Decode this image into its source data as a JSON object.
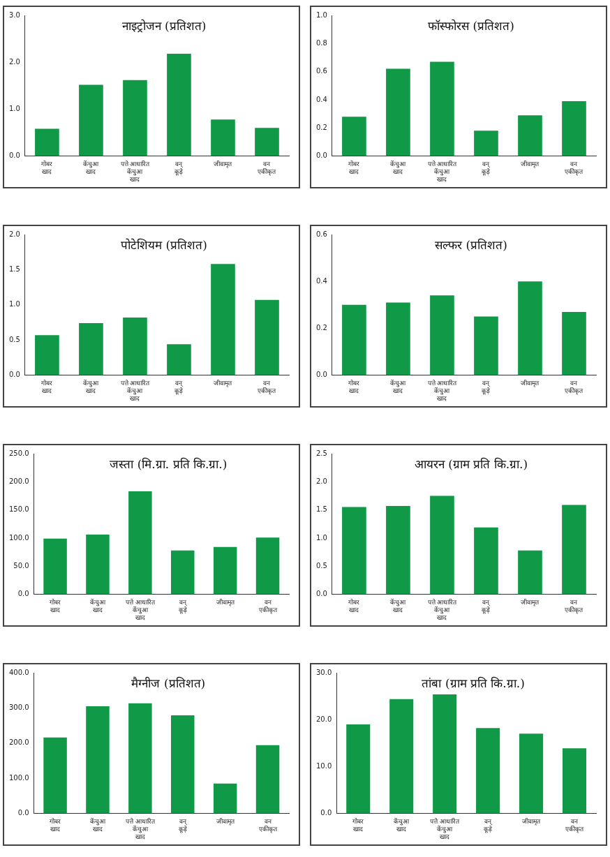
{
  "chart_data": [
    {
      "type": "bar",
      "title": "नाइट्रोजन (प्रतिशत)",
      "categories": [
        "गोबर\nखाद",
        "केंचुआ\nखाद",
        "पत्ते आधारित\nकेंचुआ\nखाद",
        "वन्\nकूड़े",
        "जीवामृत",
        "वन\nएकीकृत"
      ],
      "values": [
        0.58,
        1.52,
        1.62,
        2.18,
        0.78,
        0.6
      ],
      "color": "#109a47",
      "ylim": [
        0,
        3
      ],
      "yticks": [
        {
          "value": 0,
          "label": "0.0"
        },
        {
          "value": 1,
          "label": "1.0"
        },
        {
          "value": 2,
          "label": "2.0"
        },
        {
          "value": 3,
          "label": "3.0"
        }
      ],
      "grid": false,
      "legend": false
    },
    {
      "type": "bar",
      "title": "फॉस्फोरस (प्रतिशत)",
      "categories": [
        "गोबर\nखाद",
        "केंचुआ\nखाद",
        "पत्ते आधारित\nकेंचुआ\nखाद",
        "वन्\nकूड़े",
        "जीवामृत",
        "वन\nएकीकृत"
      ],
      "values": [
        0.28,
        0.62,
        0.67,
        0.18,
        0.29,
        0.39
      ],
      "color": "#109a47",
      "ylim": [
        0,
        1
      ],
      "yticks": [
        {
          "value": 0,
          "label": "0.0"
        },
        0.2,
        0.4,
        0.6,
        0.8,
        {
          "value": 1,
          "label": "1.0"
        }
      ],
      "grid": false,
      "legend": false
    },
    {
      "type": "bar",
      "title": "पोटेशियम (प्रतिशत)",
      "categories": [
        "गोबर\nखाद",
        "केंचुआ\nखाद",
        "पत्ते आधारित\nकेंचुआ\nखाद",
        "वन्\nकूड़े",
        "जीवामृत",
        "वन\nएकीकृत"
      ],
      "values": [
        0.57,
        0.74,
        0.82,
        0.44,
        1.58,
        1.07
      ],
      "color": "#109a47",
      "ylim": [
        0,
        2
      ],
      "yticks": [
        {
          "value": 0,
          "label": "0.0"
        },
        0.5,
        {
          "value": 1,
          "label": "1.0"
        },
        1.5,
        {
          "value": 2,
          "label": "2.0"
        }
      ],
      "grid": false,
      "legend": false
    },
    {
      "type": "bar",
      "title": "सल्फर (प्रतिशत)",
      "categories": [
        "गोबर\nखाद",
        "केंचुआ\nखाद",
        "पत्ते आधारित\nकेंचुआ\nखाद",
        "वन्\nकूड़े",
        "जीवामृत",
        "वन\nएकीकृत"
      ],
      "values": [
        0.3,
        0.31,
        0.34,
        0.25,
        0.4,
        0.27
      ],
      "color": "#109a47",
      "ylim": [
        0,
        0.6
      ],
      "yticks": [
        {
          "value": 0,
          "label": "0.0"
        },
        0.2,
        0.4,
        0.6
      ],
      "grid": false,
      "legend": false
    },
    {
      "type": "bar",
      "title": "जस्ता (मि.ग्रा. प्रति कि.ग्रा.)",
      "categories": [
        "गोबर\nखाद",
        "केंचुआ\nखाद",
        "पत्ते आधारित\nकेंचुआ\nखाद",
        "वन्\nकूड़े",
        "जीवामृत",
        "वन\nएकीकृत"
      ],
      "values": [
        99,
        106,
        183,
        78,
        84,
        101
      ],
      "color": "#109a47",
      "ylim": [
        0,
        250
      ],
      "yticks": [
        {
          "value": 0,
          "label": "0.0"
        },
        {
          "value": 50,
          "label": "50.0"
        },
        {
          "value": 100,
          "label": "100.0"
        },
        {
          "value": 150,
          "label": "150.0"
        },
        {
          "value": 200,
          "label": "200.0"
        },
        {
          "value": 250,
          "label": "250.0"
        }
      ],
      "grid": false,
      "legend": false
    },
    {
      "type": "bar",
      "title": "आयरन (ग्राम प्रति कि.ग्रा.)",
      "categories": [
        "गोबर\nखाद",
        "केंचुआ\nखाद",
        "पत्ते आधारित\nकेंचुआ\nखाद",
        "वन्\nकूड़े",
        "जीवामृत",
        "वन\nएकीकृत"
      ],
      "values": [
        1.55,
        1.57,
        1.75,
        1.19,
        0.78,
        1.59
      ],
      "color": "#109a47",
      "ylim": [
        0,
        2.5
      ],
      "yticks": [
        {
          "value": 0,
          "label": "0.0"
        },
        0.5,
        {
          "value": 1,
          "label": "1.0"
        },
        1.5,
        {
          "value": 2,
          "label": "2.0"
        },
        2.5
      ],
      "grid": false,
      "legend": false
    },
    {
      "type": "bar",
      "title": "मैग्नीज (प्रतिशत)",
      "categories": [
        "गोबर\nखाद",
        "केंचुआ\nखाद",
        "पत्ते आधारित\nकेंचुआ\nखाद",
        "वन्\nकूड़े",
        "जीवामृत",
        "वन\nएकीकृत"
      ],
      "values": [
        216,
        305,
        313,
        279,
        85,
        194
      ],
      "color": "#109a47",
      "ylim": [
        0,
        400
      ],
      "yticks": [
        {
          "value": 0,
          "label": "0.0"
        },
        {
          "value": 100,
          "label": "100.0"
        },
        {
          "value": 200,
          "label": "200.0"
        },
        {
          "value": 300,
          "label": "300.0"
        },
        {
          "value": 400,
          "label": "400.0"
        }
      ],
      "grid": false,
      "legend": false
    },
    {
      "type": "bar",
      "title": "तांबा (ग्राम प्रति कि.ग्रा.)",
      "categories": [
        "गोबर\nखाद",
        "केंचुआ\nखाद",
        "पत्ते आधारित\nकेंचुआ\nखाद",
        "वन्\nकूड़े",
        "जीवामृत",
        "वन\nएकीकृत"
      ],
      "values": [
        19.0,
        24.4,
        25.4,
        18.2,
        17.0,
        13.9
      ],
      "color": "#109a47",
      "ylim": [
        0,
        30
      ],
      "yticks": [
        {
          "value": 0,
          "label": "0.0"
        },
        {
          "value": 10,
          "label": "10.0"
        },
        {
          "value": 20,
          "label": "20.0"
        },
        {
          "value": 30,
          "label": "30.0"
        }
      ],
      "grid": false,
      "legend": false
    }
  ]
}
